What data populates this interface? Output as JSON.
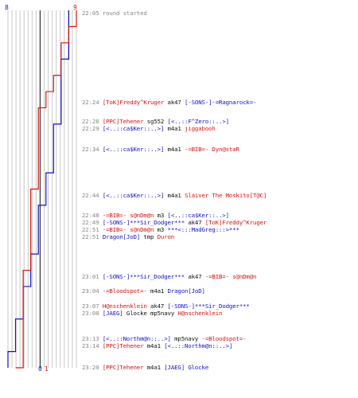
{
  "colors": {
    "blue": "#1111cc",
    "red": "#dd1111",
    "grid": "#c8c8c8",
    "axis": "#444444",
    "text": "#111111",
    "time": "#888888"
  },
  "chart_data": {
    "type": "line",
    "title": "",
    "blue_start_score": "8",
    "red_start_score": "9",
    "blue_final_score": "0",
    "red_final_score": "1",
    "ylim": [
      0,
      9
    ],
    "series": [
      {
        "color": "#1111cc",
        "remaining": [
          8,
          8,
          8,
          7,
          7,
          7,
          7,
          6,
          6,
          6,
          5,
          5,
          4,
          4,
          4,
          3,
          3,
          2,
          2,
          1,
          1,
          0,
          0
        ]
      },
      {
        "color": "#dd1111",
        "remaining": [
          9,
          8,
          7,
          7,
          6,
          5,
          4,
          4,
          4,
          4,
          4,
          3,
          3,
          3,
          3,
          3,
          2,
          2,
          2,
          2,
          2,
          2,
          1
        ]
      }
    ],
    "events": [
      {
        "time": "22:05",
        "segments": [
          {
            "text": "round started",
            "color": "gray"
          }
        ]
      },
      {
        "time": "22:24",
        "segments": [
          {
            "text": "[ToK]Freddy^Kruger",
            "color": "red"
          },
          {
            "text": " ak47 ",
            "color": "black"
          },
          {
            "text": "[-SONS-]-=Ragnarock=-",
            "color": "blue"
          }
        ]
      },
      {
        "time": "22:28",
        "segments": [
          {
            "text": "[PPC]Tehener",
            "color": "red"
          },
          {
            "text": " sg552 ",
            "color": "black"
          },
          {
            "text": "[<..::F^Zero::..>]",
            "color": "blue"
          }
        ]
      },
      {
        "time": "22:29",
        "segments": [
          {
            "text": "[<..::ca$Ker::..>]",
            "color": "blue"
          },
          {
            "text": " m4a1 ",
            "color": "black"
          },
          {
            "text": "jiggabooh",
            "color": "red"
          }
        ]
      },
      {
        "time": "22:34",
        "segments": [
          {
            "text": "[<..::ca$Ker::..>]",
            "color": "blue"
          },
          {
            "text": " m4a1 ",
            "color": "black"
          },
          {
            "text": "-=BIB=- Dyn@staR",
            "color": "red"
          }
        ]
      },
      {
        "time": "22:44",
        "segments": [
          {
            "text": "[<..::ca$Ker::..>]",
            "color": "blue"
          },
          {
            "text": " m4a1 ",
            "color": "black"
          },
          {
            "text": "Slaiver The Moskito[T@C]",
            "color": "red"
          }
        ]
      },
      {
        "time": "22:48",
        "segments": [
          {
            "text": "-=BIB=- s@nDm@n",
            "color": "red"
          },
          {
            "text": " m3 ",
            "color": "black"
          },
          {
            "text": "[<..::ca$Ker::..>]",
            "color": "blue"
          }
        ]
      },
      {
        "time": "22:49",
        "segments": [
          {
            "text": "[-SONS-]***Sir_Dodger***",
            "color": "blue"
          },
          {
            "text": " ak47 ",
            "color": "black"
          },
          {
            "text": "[ToK]Freddy^Kruger",
            "color": "red"
          }
        ]
      },
      {
        "time": "22:51",
        "segments": [
          {
            "text": "-=BIB=- s@nDm@n",
            "color": "red"
          },
          {
            "text": " m3 ",
            "color": "black"
          },
          {
            "text": "***<:::MadGreg:::>***",
            "color": "blue"
          }
        ]
      },
      {
        "time": "22:51",
        "segments": [
          {
            "text": "Dragon[JoD]",
            "color": "blue"
          },
          {
            "text": " tmp ",
            "color": "black"
          },
          {
            "text": "Duron",
            "color": "red"
          }
        ]
      },
      {
        "time": "23:01",
        "segments": [
          {
            "text": "[-SONS-]***Sir_Dodger***",
            "color": "blue"
          },
          {
            "text": " ak47 ",
            "color": "black"
          },
          {
            "text": "-=BIB=- s@nDm@n",
            "color": "red"
          }
        ]
      },
      {
        "time": "23:04",
        "segments": [
          {
            "text": "-=Bloodspot=-",
            "color": "red"
          },
          {
            "text": " m4a1 ",
            "color": "black"
          },
          {
            "text": "Dragon[JoD]",
            "color": "blue"
          }
        ]
      },
      {
        "time": "23:07",
        "segments": [
          {
            "text": "H@nschenklein",
            "color": "red"
          },
          {
            "text": " ak47 ",
            "color": "black"
          },
          {
            "text": "[-SONS-]***Sir_Dodger***",
            "color": "blue"
          }
        ]
      },
      {
        "time": "23:08",
        "segments": [
          {
            "text": "[JAEG]",
            "color": "blue"
          },
          {
            "text": " Glocke mp5navy ",
            "color": "black"
          },
          {
            "text": "H@nschenklein",
            "color": "red"
          }
        ]
      },
      {
        "time": "23:13",
        "segments": [
          {
            "text": "[<..::Northm@n::..>]",
            "color": "blue"
          },
          {
            "text": " mp5navy ",
            "color": "black"
          },
          {
            "text": "-=Bloodspot=-",
            "color": "red"
          }
        ]
      },
      {
        "time": "23:14",
        "segments": [
          {
            "text": "[PPC]Tehener",
            "color": "red"
          },
          {
            "text": " m4a1 ",
            "color": "black"
          },
          {
            "text": "[<..::Northm@n::..>]",
            "color": "blue"
          }
        ]
      },
      {
        "time": "23:20",
        "segments": [
          {
            "text": "[PPC]Tehener",
            "color": "red"
          },
          {
            "text": " m4a1 ",
            "color": "black"
          },
          {
            "text": "[JAEG] Glocke",
            "color": "blue"
          }
        ]
      }
    ]
  }
}
